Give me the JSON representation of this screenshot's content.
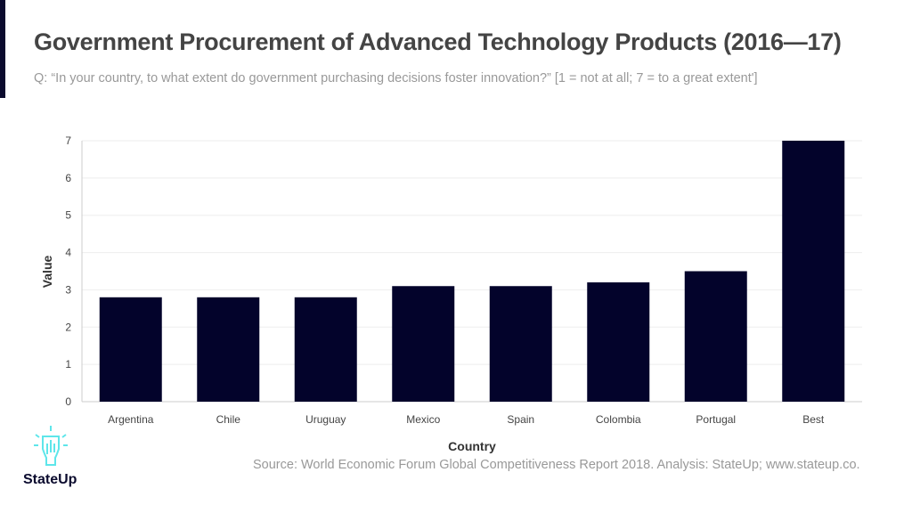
{
  "header": {
    "title": "Government Procurement of Advanced Technology Products (2016—17)",
    "subtitle": "Q: “In your country, to what extent do government purchasing decisions foster innovation?” [1 = not at all; 7 = to a great extent']"
  },
  "footer": {
    "source": "Source: World Economic Forum Global Competitiveness Report 2018. Analysis: StateUp; www.stateup.co.",
    "brand": "StateUp",
    "logo_icon": "lightbulb-hand-icon"
  },
  "colors": {
    "bar": "#03032b",
    "accent": "#0b0b2e",
    "logo": "#5ee6ea"
  },
  "chart_data": {
    "type": "bar",
    "categories": [
      "Argentina",
      "Chile",
      "Uruguay",
      "Mexico",
      "Spain",
      "Colombia",
      "Portugal",
      "Best"
    ],
    "values": [
      2.8,
      2.8,
      2.8,
      3.1,
      3.1,
      3.2,
      3.5,
      7
    ],
    "xlabel": "Country",
    "ylabel": "Value",
    "ylim": [
      0,
      7
    ],
    "yticks": [
      "0",
      "1",
      "2",
      "3",
      "4",
      "5",
      "6",
      "7"
    ],
    "grid": true
  }
}
